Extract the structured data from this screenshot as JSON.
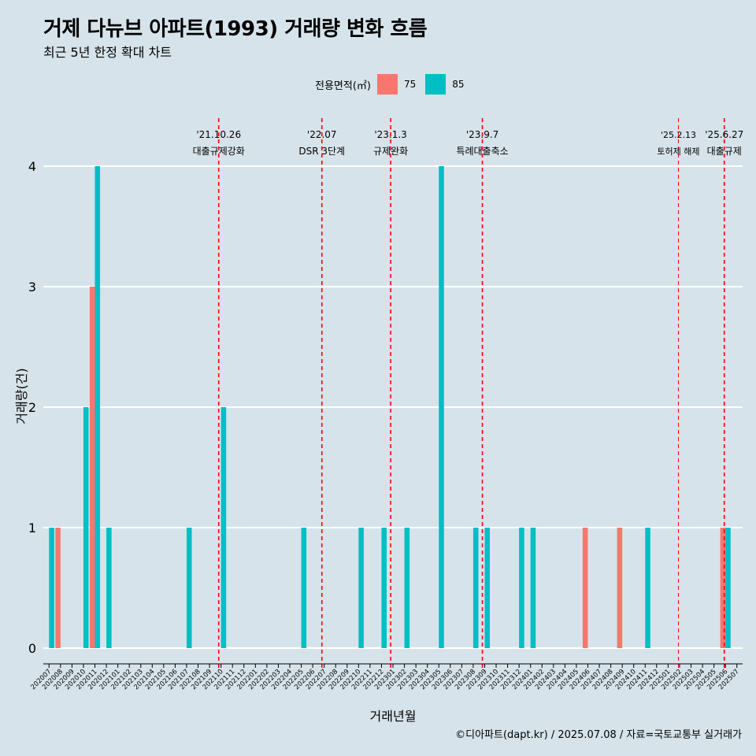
{
  "title": "거제 다뉴브 아파트(1993) 거래량 변화 흐름",
  "subtitle": "최근 5년 한정 확대 차트",
  "caption": "©디아파트(dapt.kr) / 2025.07.08 / 자료=국토교통부 실거래가",
  "colors": {
    "background": "#d6e3ea",
    "s75": "#f8766d",
    "s85": "#00bfc4",
    "vline": "#ff0000",
    "grid": "#ffffff"
  },
  "legend": {
    "title": "전용면적(㎡)",
    "items": [
      "75",
      "85"
    ]
  },
  "chart_data": {
    "type": "bar",
    "xlabel": "거래년월",
    "ylabel": "거래량(건)",
    "ylim": [
      0,
      4
    ],
    "yticks": [
      0,
      1,
      2,
      3,
      4
    ],
    "grid": true,
    "legend_position": "top",
    "categories": [
      "202007",
      "202008",
      "202009",
      "202010",
      "202011",
      "202012",
      "202101",
      "202102",
      "202103",
      "202104",
      "202105",
      "202106",
      "202107",
      "202108",
      "202109",
      "202110",
      "202111",
      "202112",
      "202201",
      "202202",
      "202203",
      "202204",
      "202205",
      "202206",
      "202207",
      "202208",
      "202209",
      "202210",
      "202211",
      "202212",
      "202301",
      "202302",
      "202303",
      "202304",
      "202305",
      "202306",
      "202307",
      "202308",
      "202309",
      "202310",
      "202311",
      "202312",
      "202401",
      "202402",
      "202403",
      "202404",
      "202405",
      "202406",
      "202407",
      "202408",
      "202409",
      "202410",
      "202411",
      "202412",
      "202501",
      "202502",
      "202503",
      "202504",
      "202505",
      "202506",
      "202507"
    ],
    "series": [
      {
        "name": "75",
        "color": "#f8766d",
        "values": [
          0,
          1,
          0,
          0,
          3,
          0,
          0,
          0,
          0,
          0,
          0,
          0,
          0,
          0,
          0,
          0,
          0,
          0,
          0,
          0,
          0,
          0,
          0,
          0,
          0,
          0,
          0,
          0,
          0,
          0,
          0,
          0,
          0,
          0,
          0,
          0,
          0,
          0,
          0,
          0,
          0,
          0,
          0,
          0,
          0,
          0,
          0,
          1,
          0,
          0,
          1,
          0,
          0,
          0,
          0,
          0,
          0,
          0,
          0,
          1,
          0
        ]
      },
      {
        "name": "85",
        "color": "#00bfc4",
        "values": [
          1,
          0,
          0,
          2,
          4,
          1,
          0,
          0,
          0,
          0,
          0,
          0,
          1,
          0,
          0,
          2,
          0,
          0,
          0,
          0,
          0,
          0,
          1,
          0,
          0,
          0,
          0,
          1,
          0,
          1,
          0,
          1,
          0,
          0,
          4,
          0,
          0,
          1,
          1,
          0,
          0,
          1,
          1,
          0,
          0,
          0,
          0,
          0,
          0,
          0,
          0,
          0,
          1,
          0,
          0,
          0,
          0,
          0,
          0,
          1,
          0
        ]
      }
    ],
    "annotations": [
      {
        "date": "'21.10.26",
        "label": "대출규제강화",
        "x": 15.3,
        "style": "dashed"
      },
      {
        "date": "'22.07",
        "label": "DSR 3단계",
        "x": 24.3,
        "style": "dashed"
      },
      {
        "date": "'23.1.3",
        "label": "규제완화",
        "x": 30.3,
        "style": "dashed"
      },
      {
        "date": "'23.9.7",
        "label": "특례대출축소",
        "x": 38.3,
        "style": "dashed"
      },
      {
        "date": "'25.2.13",
        "label": "토허제 해제",
        "x": 55.4,
        "style": "thin"
      },
      {
        "date": "'25.6.27",
        "label": "대출규제",
        "x": 59.4,
        "style": "dashed"
      }
    ]
  }
}
